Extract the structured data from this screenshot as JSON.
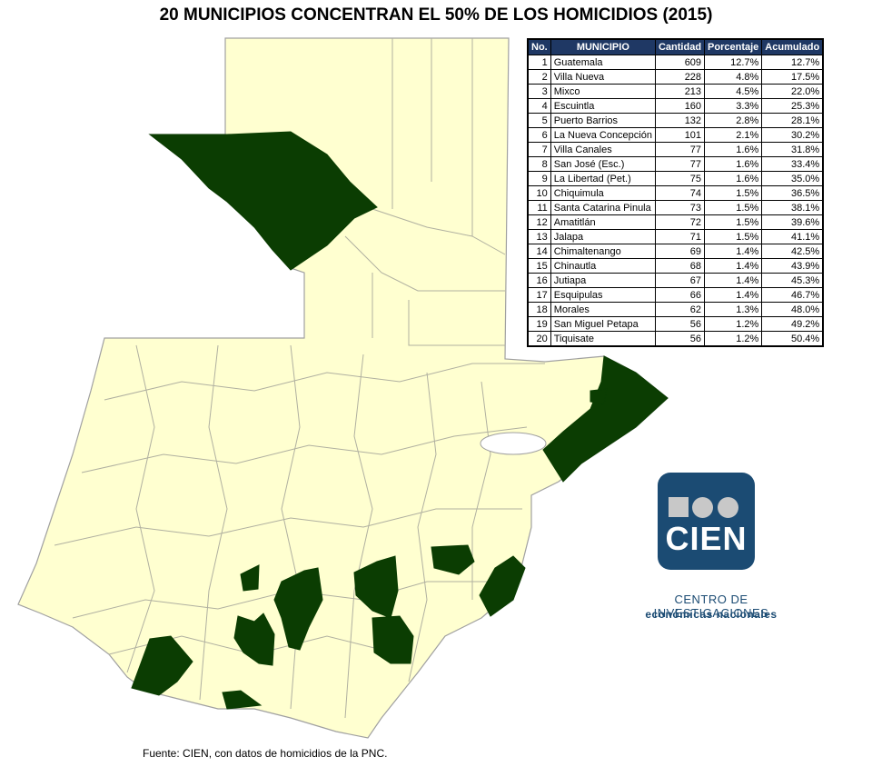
{
  "title": "20 MUNICIPIOS CONCENTRAN EL 50% DE LOS HOMICIDIOS (2015)",
  "table": {
    "headers": [
      "No.",
      "MUNICIPIO",
      "Cantidad",
      "Porcentaje",
      "Acumulado"
    ],
    "rows": [
      [
        1,
        "Guatemala",
        609,
        "12.7%",
        "12.7%"
      ],
      [
        2,
        "Villa Nueva",
        228,
        "4.8%",
        "17.5%"
      ],
      [
        3,
        "Mixco",
        213,
        "4.5%",
        "22.0%"
      ],
      [
        4,
        "Escuintla",
        160,
        "3.3%",
        "25.3%"
      ],
      [
        5,
        "Puerto Barrios",
        132,
        "2.8%",
        "28.1%"
      ],
      [
        6,
        "La Nueva Concepción",
        101,
        "2.1%",
        "30.2%"
      ],
      [
        7,
        "Villa Canales",
        77,
        "1.6%",
        "31.8%"
      ],
      [
        8,
        "San José (Esc.)",
        77,
        "1.6%",
        "33.4%"
      ],
      [
        9,
        "La Libertad (Pet.)",
        75,
        "1.6%",
        "35.0%"
      ],
      [
        10,
        "Chiquimula",
        74,
        "1.5%",
        "36.5%"
      ],
      [
        11,
        "Santa Catarina Pinula",
        73,
        "1.5%",
        "38.1%"
      ],
      [
        12,
        "Amatitlán",
        72,
        "1.5%",
        "39.6%"
      ],
      [
        13,
        "Jalapa",
        71,
        "1.5%",
        "41.1%"
      ],
      [
        14,
        "Chimaltenango",
        69,
        "1.4%",
        "42.5%"
      ],
      [
        15,
        "Chinautla",
        68,
        "1.4%",
        "43.9%"
      ],
      [
        16,
        "Jutiapa",
        67,
        "1.4%",
        "45.3%"
      ],
      [
        17,
        "Esquipulas",
        66,
        "1.4%",
        "46.7%"
      ],
      [
        18,
        "Morales",
        62,
        "1.3%",
        "48.0%"
      ],
      [
        19,
        "San Miguel Petapa",
        56,
        "1.2%",
        "49.2%"
      ],
      [
        20,
        "Tiquisate",
        56,
        "1.2%",
        "50.4%"
      ]
    ]
  },
  "logo": {
    "text": "CIEN",
    "line1": "CENTRO DE INVESTIGACIONES",
    "line2": "económicas nacionales"
  },
  "source": "Fuente: CIEN, con datos de homicidios de la PNC."
}
